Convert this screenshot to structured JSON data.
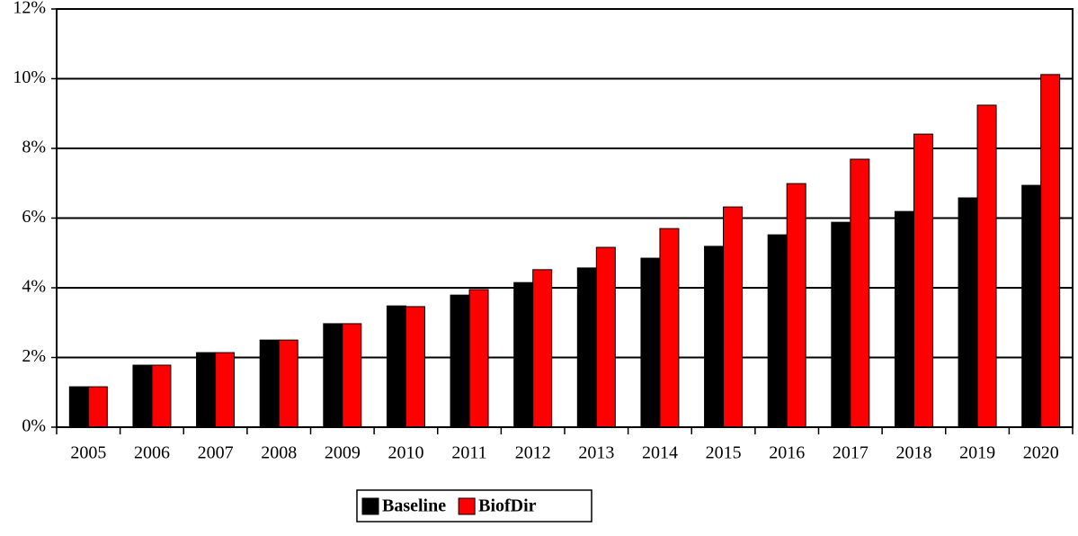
{
  "chart_data": {
    "type": "bar",
    "categories": [
      "2005",
      "2006",
      "2007",
      "2008",
      "2009",
      "2010",
      "2011",
      "2012",
      "2013",
      "2014",
      "2015",
      "2016",
      "2017",
      "2018",
      "2019",
      "2020"
    ],
    "series": [
      {
        "name": "Baseline",
        "color": "#000000",
        "values": [
          1.16,
          1.78,
          2.14,
          2.5,
          2.97,
          3.48,
          3.79,
          4.15,
          4.57,
          4.85,
          5.19,
          5.52,
          5.88,
          6.19,
          6.58,
          6.94
        ]
      },
      {
        "name": "BiofDir",
        "color": "#ff0000",
        "values": [
          1.16,
          1.78,
          2.14,
          2.5,
          2.97,
          3.46,
          3.95,
          4.52,
          5.16,
          5.7,
          6.32,
          6.99,
          7.69,
          8.41,
          9.24,
          10.12
        ]
      }
    ],
    "ylim": [
      0,
      12
    ],
    "yticks": [
      {
        "value": 0,
        "label": "0%"
      },
      {
        "value": 2,
        "label": "2%"
      },
      {
        "value": 4,
        "label": "4%"
      },
      {
        "value": 6,
        "label": "6%"
      },
      {
        "value": 8,
        "label": "8%"
      },
      {
        "value": 10,
        "label": "10%"
      },
      {
        "value": 12,
        "label": "12%"
      }
    ],
    "grid": true
  }
}
